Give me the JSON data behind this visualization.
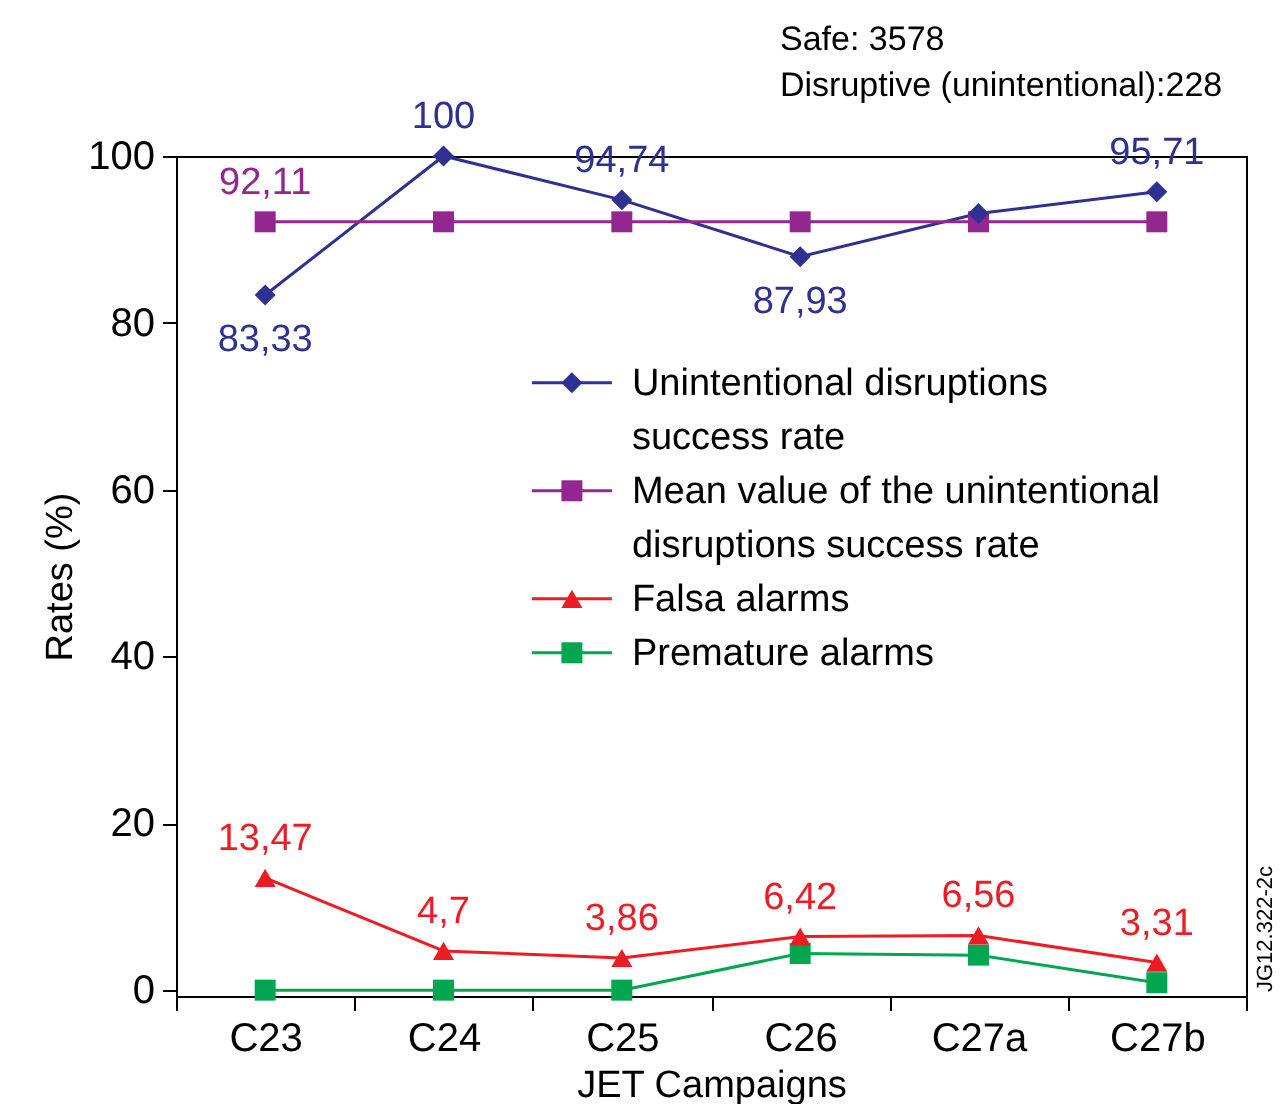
{
  "chart_data": {
    "type": "line",
    "xlabel": "JET Campaigns",
    "ylabel": "Rates (%)",
    "categories": [
      "C23",
      "C24",
      "C25",
      "C26",
      "C27a",
      "C27b"
    ],
    "ylim": [
      -0.7,
      100
    ],
    "yticks": [
      0,
      20,
      40,
      60,
      80,
      100
    ],
    "legend": "right",
    "series": [
      {
        "name": "Unintentional disruptions success rate",
        "color": "#2e3192",
        "marker": "diamond",
        "values": [
          83.33,
          100,
          94.74,
          87.93,
          93.1,
          95.71
        ],
        "value_labels": [
          "83,33",
          "100",
          "94,74",
          "87,93",
          null,
          "95,71"
        ]
      },
      {
        "name": "Mean value of the unintentional disruptions success rate",
        "color": "#92278f",
        "marker": "square",
        "values": [
          92.11,
          92.11,
          92.11,
          92.11,
          92.11,
          92.11
        ],
        "value_labels": [
          "92,11",
          null,
          null,
          null,
          null,
          null
        ]
      },
      {
        "name": "Falsa alarms",
        "color": "#ed1c24",
        "marker": "triangle",
        "values": [
          13.47,
          4.7,
          3.86,
          6.42,
          6.56,
          3.31
        ],
        "value_labels": [
          "13,47",
          "4,7",
          "3,86",
          "6,42",
          "6,56",
          "3,31"
        ]
      },
      {
        "name": "Premature alarms",
        "color": "#00a650",
        "marker": "square",
        "values": [
          0,
          0,
          0,
          4.4,
          4.2,
          0.9
        ]
      }
    ],
    "annotations": [
      "Safe: 3578",
      "Disruptive (unintentional):228",
      "JG12.322-2c"
    ]
  }
}
